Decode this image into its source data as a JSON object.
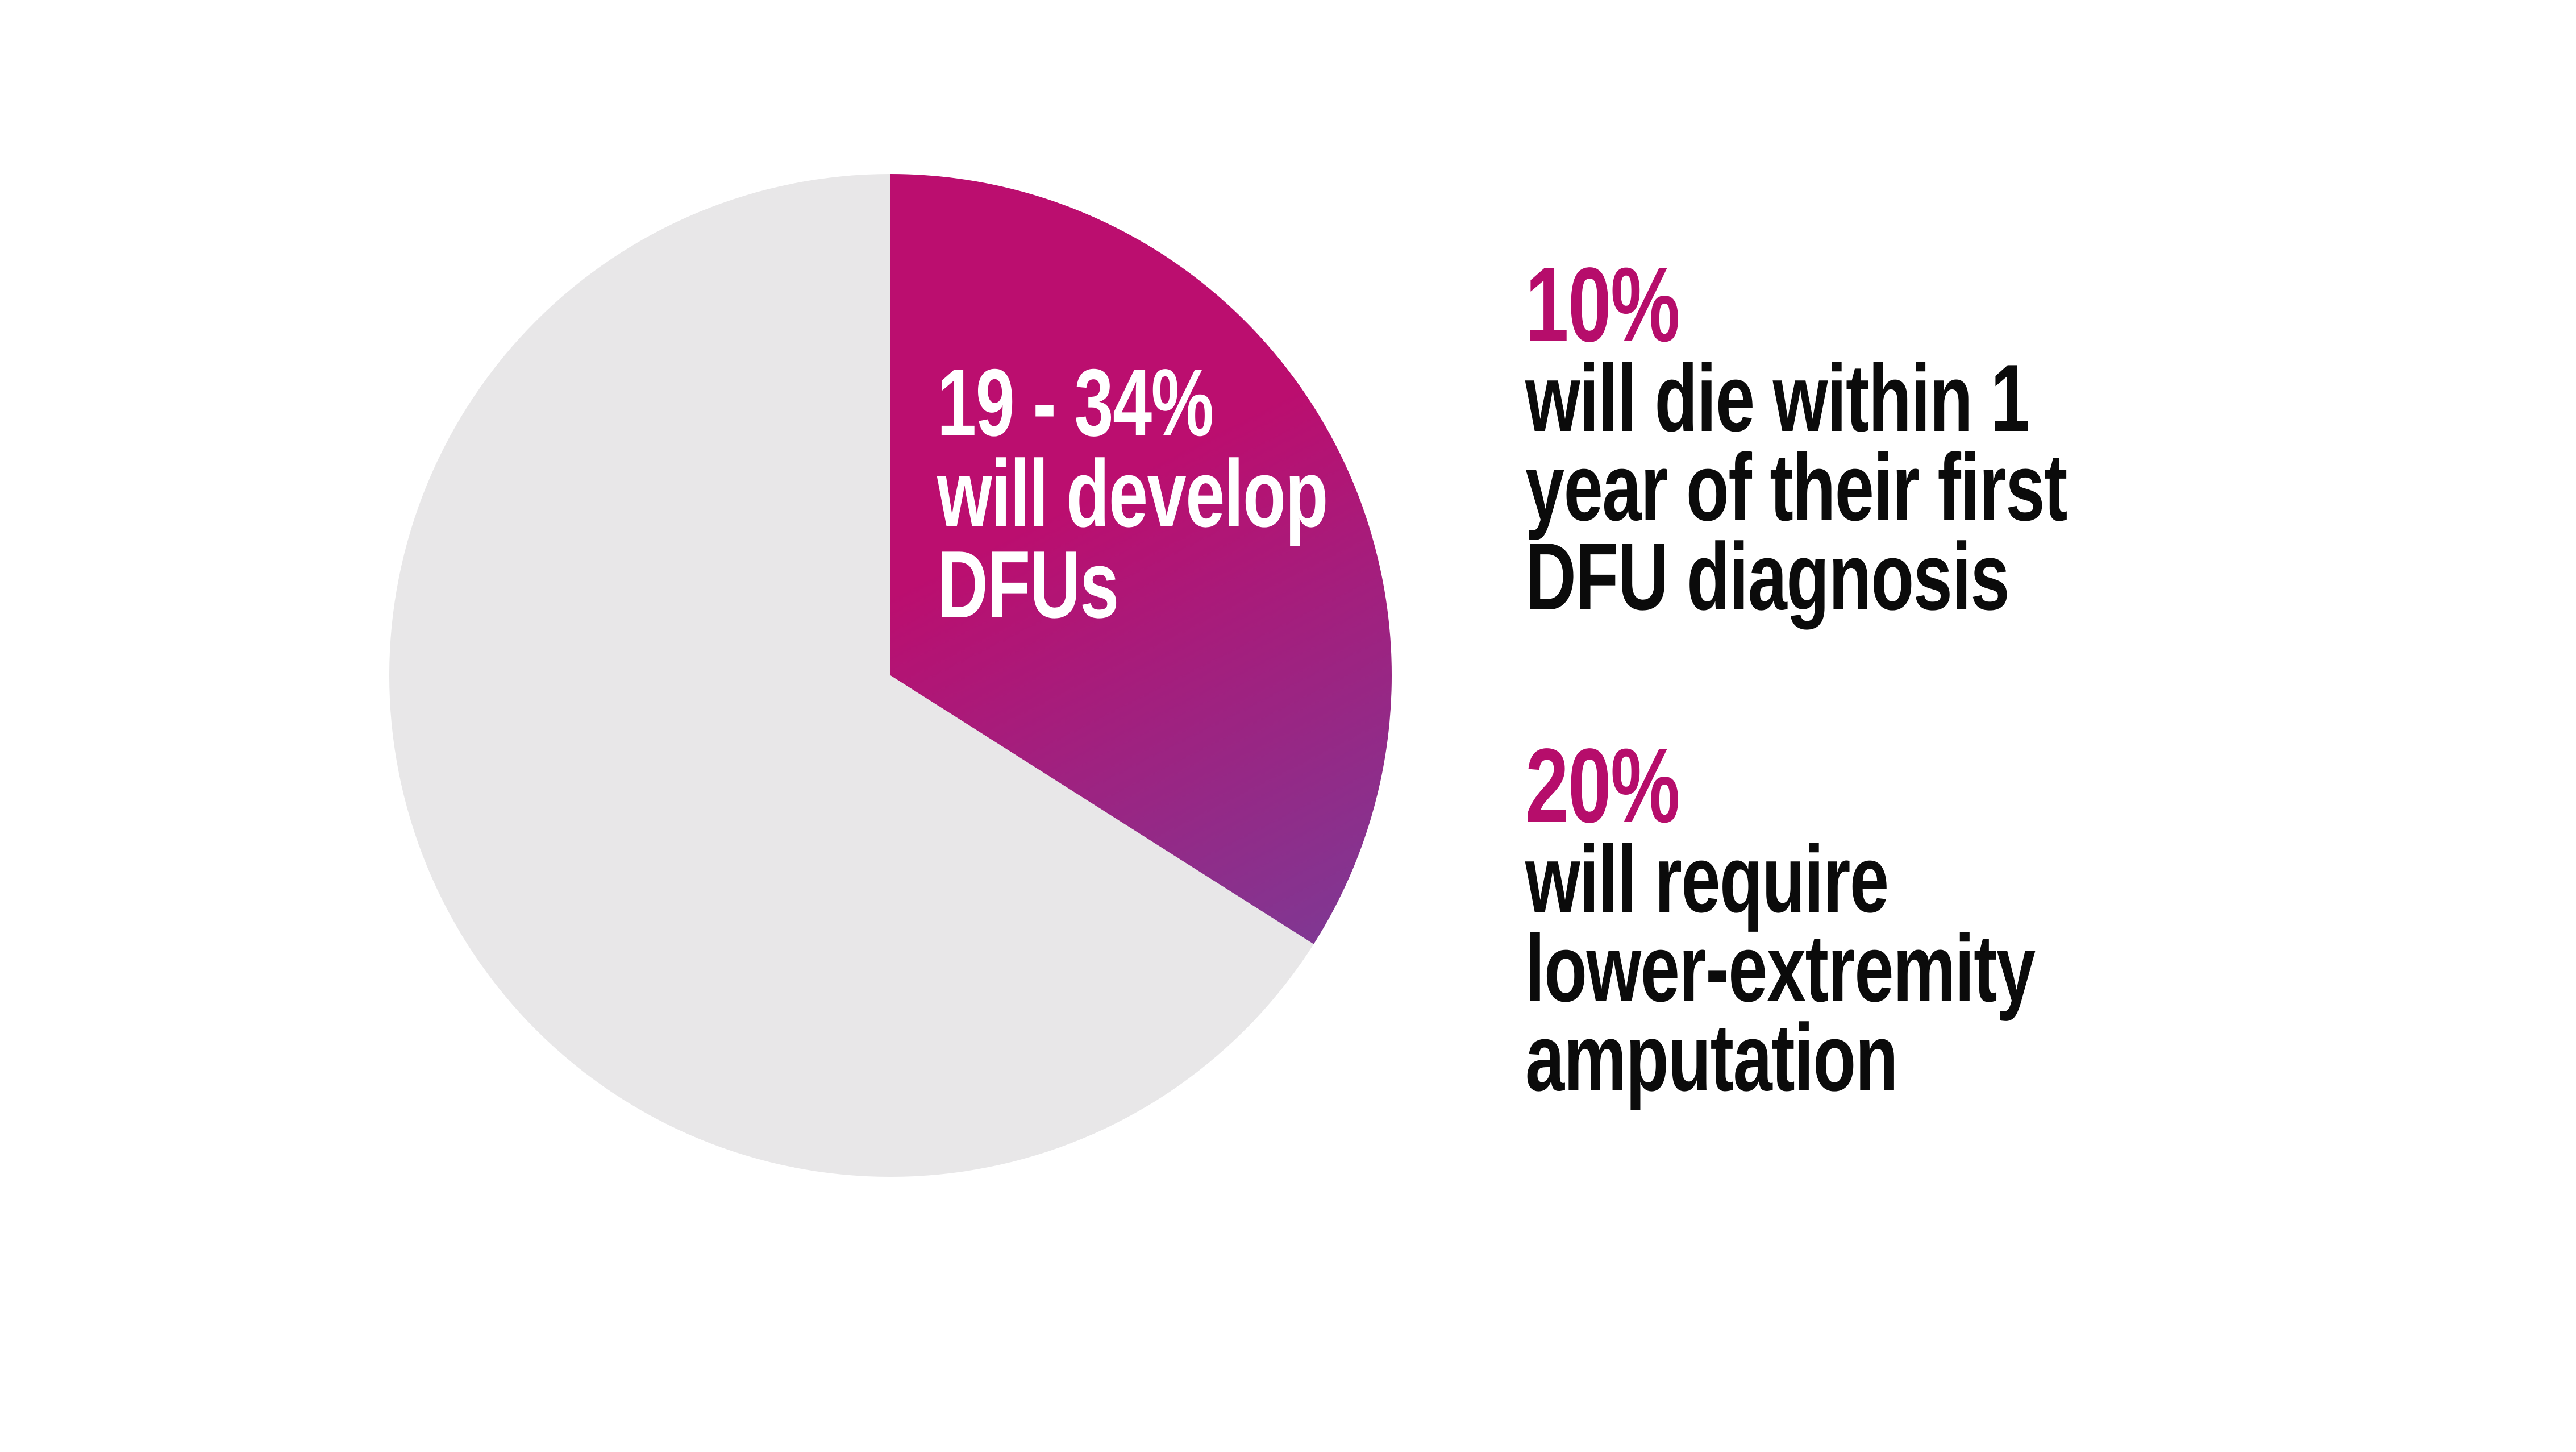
{
  "colors": {
    "background": "#ffffff",
    "slice_gradient_start": "#BB0E6F",
    "slice_gradient_end": "#7C3A95",
    "remainder_gray": "#E8E7E8",
    "accent_magenta": "#B60D6B",
    "body_text": "#0b0b0b",
    "slice_label_text": "#ffffff"
  },
  "chart_data": {
    "type": "pie",
    "title": "",
    "start_position": "12 o'clock",
    "direction": "clockwise",
    "legend_position": "none",
    "slices": [
      {
        "label": "19 - 34% will develop DFUs",
        "value": 34,
        "color": "gradient #BB0E6F to #7C3A95"
      },
      {
        "label": "remainder (unlabeled)",
        "value": 66,
        "color": "#E8E7E8"
      }
    ],
    "annotations": [
      "10% will die within 1 year of their first DFU diagnosis",
      "20% will require lower-extremity amputation"
    ]
  },
  "pie_label": {
    "line1": "19 - 34%",
    "line2": "will develop",
    "line3": "DFUs"
  },
  "stats": [
    {
      "pct": "10%",
      "lines": [
        "will die within 1",
        "year of their first",
        "DFU diagnosis"
      ]
    },
    {
      "pct": "20%",
      "lines": [
        "will require",
        "lower-extremity",
        "amputation"
      ]
    }
  ]
}
